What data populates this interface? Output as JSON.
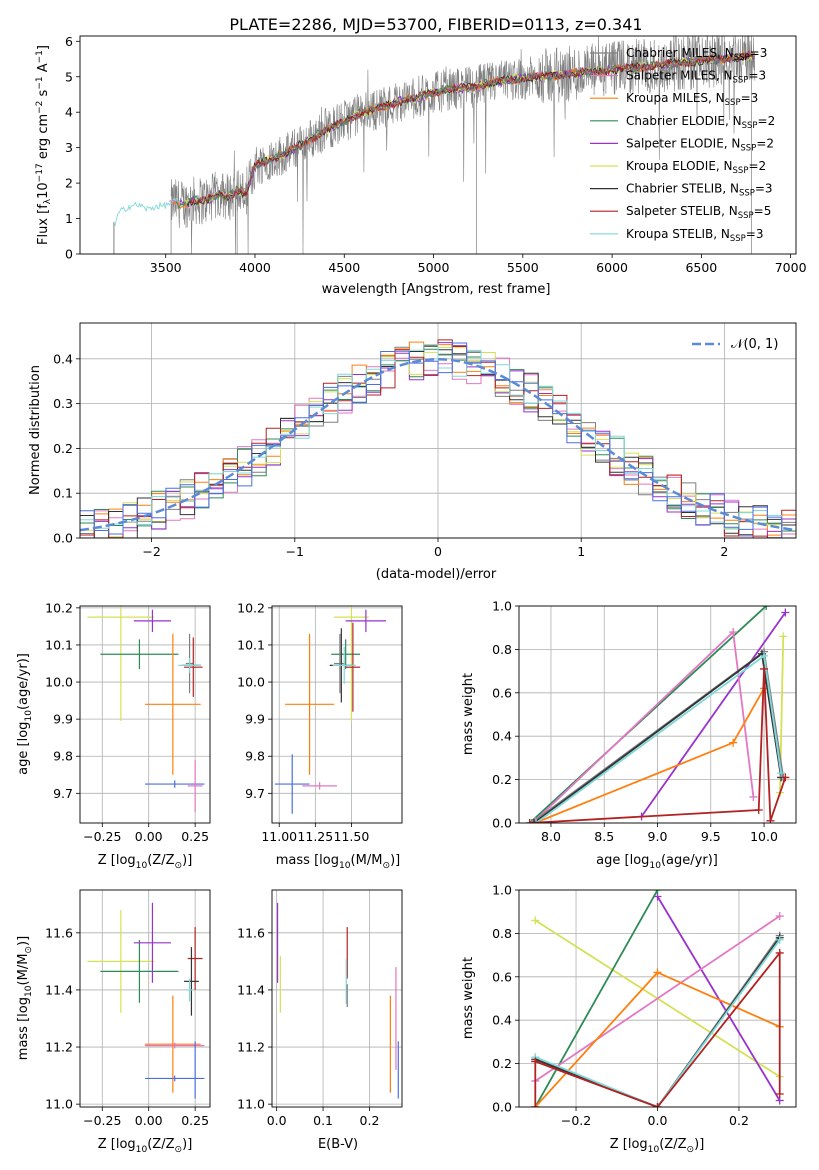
{
  "figure": {
    "title": "PLATE=2286, MJD=53700, FIBERID=0113, z=0.341"
  },
  "colors": {
    "chabrier_miles": "#7f7f7f",
    "salpeter_miles": "#e377c2",
    "kroupa_miles": "#ff7f0e",
    "chabrier_elodie": "#2e8b57",
    "salpeter_elodie": "#9932cc",
    "kroupa_elodie": "#d4e157",
    "chabrier_stelib": "#333333",
    "salpeter_stelib": "#b22222",
    "kroupa_stelib": "#7fd8d8",
    "gauss": "#5b8bd6",
    "blue_extra": "#4a6fe3"
  },
  "chart_data": [
    {
      "id": "spectrum",
      "type": "line",
      "xlabel": "wavelength [Angstrom, rest frame]",
      "ylabel_parts": [
        "Flux [f",
        "λ",
        "10",
        "−17",
        " erg cm",
        "−2",
        " s",
        "−1",
        " A",
        "−1",
        "]"
      ],
      "xlim": [
        3020,
        7030
      ],
      "ylim": [
        0,
        6.15
      ],
      "xticks": [
        3500,
        4000,
        4500,
        5000,
        5500,
        6000,
        6500,
        7000
      ],
      "yticks": [
        0,
        1,
        2,
        3,
        4,
        5,
        6
      ],
      "legend_position": "top-right",
      "legend": [
        {
          "name": "Chabrier MILES, N",
          "sub": "SSP",
          "tail": "=3",
          "color_key": "chabrier_miles"
        },
        {
          "name": "Salpeter MILES, N",
          "sub": "SSP",
          "tail": "=3",
          "color_key": "salpeter_miles"
        },
        {
          "name": "Kroupa MILES, N",
          "sub": "SSP",
          "tail": "=3",
          "color_key": "kroupa_miles"
        },
        {
          "name": "Chabrier ELODIE, N",
          "sub": "SSP",
          "tail": "=2",
          "color_key": "chabrier_elodie"
        },
        {
          "name": "Salpeter ELODIE, N",
          "sub": "SSP",
          "tail": "=2",
          "color_key": "salpeter_elodie"
        },
        {
          "name": "Kroupa ELODIE, N",
          "sub": "SSP",
          "tail": "=2",
          "color_key": "kroupa_elodie"
        },
        {
          "name": "Chabrier STELIB, N",
          "sub": "SSP",
          "tail": "=3",
          "color_key": "chabrier_stelib"
        },
        {
          "name": "Salpeter STELIB, N",
          "sub": "SSP",
          "tail": "=5",
          "color_key": "salpeter_stelib"
        },
        {
          "name": "Kroupa STELIB, N",
          "sub": "SSP",
          "tail": "=3",
          "color_key": "kroupa_stelib"
        }
      ],
      "continuum": {
        "x": [
          3210,
          3240,
          3300,
          3350,
          3400,
          3450,
          3500,
          3550,
          3600,
          3650,
          3700,
          3750,
          3800,
          3850,
          3900,
          3950,
          4000,
          4100,
          4200,
          4300,
          4400,
          4500,
          4600,
          4700,
          4800,
          4900,
          5000,
          5100,
          5200,
          5300,
          5400,
          5500,
          5600,
          5700,
          5800,
          5900,
          6000,
          6100,
          6200,
          6300,
          6400,
          6500,
          6600,
          6700,
          6800
        ],
        "y": [
          0.8,
          1.2,
          1.3,
          1.35,
          1.3,
          1.4,
          1.35,
          1.45,
          1.4,
          1.5,
          1.5,
          1.55,
          1.7,
          1.6,
          1.8,
          1.7,
          2.5,
          2.7,
          2.9,
          3.2,
          3.5,
          3.75,
          4.0,
          4.1,
          4.3,
          4.4,
          4.55,
          4.65,
          4.7,
          4.8,
          4.9,
          4.95,
          5.0,
          5.05,
          5.1,
          5.15,
          5.2,
          5.25,
          5.3,
          5.35,
          5.4,
          5.45,
          5.5,
          5.55,
          5.6
        ]
      },
      "model_range": [
        3210,
        6800
      ],
      "data_range": [
        3530,
        6800
      ]
    },
    {
      "id": "residuals",
      "type": "step",
      "xlabel": "(data-model)/error",
      "ylabel": "Normed distribution",
      "xlim": [
        -2.5,
        2.5
      ],
      "ylim": [
        0,
        0.48
      ],
      "xticks": [
        -2,
        -1,
        0,
        1,
        2
      ],
      "yticks": [
        0.0,
        0.1,
        0.2,
        0.3,
        0.4
      ],
      "yticklabels": [
        "0.0",
        "0.1",
        "0.2",
        "0.3",
        "0.4"
      ],
      "legend_position": "top-right",
      "legend_label": "𝒩(0, 1)",
      "bin_width": 0.1,
      "n_bins": 50
    },
    {
      "id": "age_vs_Z",
      "type": "errorbar",
      "xlabel_parts": [
        "Z [log",
        "10",
        "(Z/Z",
        "⊙",
        ")]"
      ],
      "ylabel_parts": [
        "age  [log",
        "10",
        "(age/yr)]"
      ],
      "xlim": [
        -0.37,
        0.33
      ],
      "ylim": [
        9.62,
        10.205
      ],
      "xticks": [
        -0.25,
        0.0,
        0.25
      ],
      "xticklabels": [
        "−0.25",
        "0.00",
        "0.25"
      ],
      "yticks": [
        9.7,
        9.8,
        9.9,
        10.0,
        10.1,
        10.2
      ],
      "yticklabels": [
        "9.7",
        "9.8",
        "9.9",
        "10.0",
        "10.1",
        "10.2"
      ],
      "points": [
        {
          "x": -0.15,
          "xerr": 0.18,
          "y": 10.175,
          "yerr": 0.28,
          "color_key": "kroupa_elodie"
        },
        {
          "x": -0.05,
          "xerr": 0.21,
          "y": 10.075,
          "yerr": 0.04,
          "color_key": "chabrier_elodie"
        },
        {
          "x": 0.02,
          "xerr": 0.1,
          "y": 10.165,
          "yerr": 0.03,
          "color_key": "salpeter_elodie"
        },
        {
          "x": 0.22,
          "xerr": 0.02,
          "y": 10.05,
          "yerr": 0.08,
          "color_key": "chabrier_miles"
        },
        {
          "x": 0.23,
          "xerr": 0.05,
          "y": 10.045,
          "yerr": 0.0,
          "color_key": "chabrier_stelib"
        },
        {
          "x": 0.24,
          "xerr": 0.05,
          "y": 10.04,
          "yerr": 0.08,
          "color_key": "salpeter_stelib"
        },
        {
          "x": 0.22,
          "xerr": 0.06,
          "y": 10.045,
          "yerr": 0.02,
          "color_key": "kroupa_stelib"
        },
        {
          "x": 0.13,
          "xerr": 0.15,
          "y": 9.94,
          "yerr": 0.19,
          "color_key": "kroupa_miles"
        },
        {
          "x": 0.14,
          "xerr": 0.16,
          "y": 9.725,
          "yerr": 0.01,
          "color_key": "blue_extra"
        },
        {
          "x": 0.25,
          "xerr": 0.04,
          "y": 9.72,
          "yerr": 0.07,
          "color_key": "salpeter_miles"
        }
      ]
    },
    {
      "id": "age_vs_mass",
      "type": "errorbar",
      "xlabel_parts": [
        "mass [log",
        "10",
        "(M/M",
        "⊙",
        ")]"
      ],
      "xlim": [
        10.95,
        11.85
      ],
      "ylim": [
        9.62,
        10.205
      ],
      "xticks": [
        11.0,
        11.25,
        11.5
      ],
      "xticklabels": [
        "11.00",
        "11.25",
        "11.50"
      ],
      "yticks": [
        9.7,
        9.8,
        9.9,
        10.0,
        10.1,
        10.2
      ],
      "yticklabels": [
        "9.7",
        "9.8",
        "9.9",
        "10.0",
        "10.1",
        "10.2"
      ],
      "points": [
        {
          "x": 11.5,
          "xerr": 0.12,
          "y": 10.175,
          "yerr": 0.28,
          "color_key": "kroupa_elodie"
        },
        {
          "x": 11.46,
          "xerr": 0.1,
          "y": 10.075,
          "yerr": 0.04,
          "color_key": "chabrier_elodie"
        },
        {
          "x": 11.6,
          "xerr": 0.14,
          "y": 10.165,
          "yerr": 0.03,
          "color_key": "salpeter_elodie"
        },
        {
          "x": 11.42,
          "xerr": 0.04,
          "y": 10.05,
          "yerr": 0.08,
          "color_key": "chabrier_miles"
        },
        {
          "x": 11.43,
          "xerr": 0.08,
          "y": 10.045,
          "yerr": 0.1,
          "color_key": "chabrier_stelib"
        },
        {
          "x": 11.51,
          "xerr": 0.05,
          "y": 10.04,
          "yerr": 0.12,
          "color_key": "salpeter_stelib"
        },
        {
          "x": 11.45,
          "xerr": 0.08,
          "y": 10.045,
          "yerr": 0.05,
          "color_key": "kroupa_stelib"
        },
        {
          "x": 11.21,
          "xerr": 0.17,
          "y": 9.94,
          "yerr": 0.19,
          "color_key": "kroupa_miles"
        },
        {
          "x": 11.09,
          "xerr": 0.12,
          "y": 9.725,
          "yerr": 0.08,
          "color_key": "blue_extra"
        },
        {
          "x": 11.28,
          "xerr": 0.12,
          "y": 9.72,
          "yerr": 0.01,
          "color_key": "salpeter_miles"
        }
      ]
    },
    {
      "id": "weight_vs_age",
      "type": "line",
      "xlabel_parts": [
        "age  [log",
        "10",
        "(age/yr)]"
      ],
      "ylabel": "mass weight",
      "xlim": [
        7.7,
        10.3
      ],
      "ylim": [
        0,
        1.0
      ],
      "xticks": [
        8.0,
        8.5,
        9.0,
        9.5,
        10.0
      ],
      "xticklabels": [
        "8.0",
        "8.5",
        "9.0",
        "9.5",
        "10.0"
      ],
      "yticks": [
        0.0,
        0.2,
        0.4,
        0.6,
        0.8,
        1.0
      ],
      "yticklabels": [
        "0.0",
        "0.2",
        "0.4",
        "0.6",
        "0.8",
        "1.0"
      ],
      "series": [
        {
          "color_key": "kroupa_elodie",
          "x": [
            10.15,
            10.18
          ],
          "y": [
            0.14,
            0.86
          ]
        },
        {
          "color_key": "salpeter_elodie",
          "x": [
            8.85,
            10.2
          ],
          "y": [
            0.03,
            0.97
          ]
        },
        {
          "color_key": "chabrier_elodie",
          "x": [
            7.8,
            10.02
          ],
          "y": [
            0.0,
            1.0
          ]
        },
        {
          "color_key": "salpeter_miles",
          "x": [
            7.85,
            9.71,
            9.9
          ],
          "y": [
            0.01,
            0.88,
            0.12
          ]
        },
        {
          "color_key": "kroupa_miles",
          "x": [
            7.85,
            9.71,
            10.0
          ],
          "y": [
            0.0,
            0.37,
            0.62
          ]
        },
        {
          "color_key": "chabrier_miles",
          "x": [
            7.82,
            10.0,
            10.18
          ],
          "y": [
            0.0,
            0.79,
            0.21
          ]
        },
        {
          "color_key": "chabrier_stelib",
          "x": [
            7.84,
            9.98,
            10.16
          ],
          "y": [
            0.0,
            0.78,
            0.21
          ]
        },
        {
          "color_key": "kroupa_stelib",
          "x": [
            7.86,
            10.0,
            10.16
          ],
          "y": [
            0.0,
            0.77,
            0.23
          ]
        },
        {
          "color_key": "salpeter_stelib",
          "x": [
            7.8,
            9.95,
            10.0,
            10.06,
            10.2
          ],
          "y": [
            0.0,
            0.06,
            0.71,
            0.01,
            0.21
          ]
        }
      ]
    },
    {
      "id": "mass_vs_Z",
      "type": "errorbar",
      "xlabel_parts": [
        "Z [log",
        "10",
        "(Z/Z",
        "⊙",
        ")]"
      ],
      "ylabel_parts": [
        "mass [log",
        "10",
        "(M/M",
        "⊙",
        ")]"
      ],
      "xlim": [
        -0.37,
        0.33
      ],
      "ylim": [
        10.99,
        11.75
      ],
      "xticks": [
        -0.25,
        0.0,
        0.25
      ],
      "xticklabels": [
        "−0.25",
        "0.00",
        "0.25"
      ],
      "yticks": [
        11.0,
        11.2,
        11.4,
        11.6
      ],
      "yticklabels": [
        "11.0",
        "11.2",
        "11.4",
        "11.6"
      ],
      "points": [
        {
          "x": -0.15,
          "xerr": 0.18,
          "y": 11.5,
          "yerr": 0.18,
          "color_key": "kroupa_elodie"
        },
        {
          "x": -0.05,
          "xerr": 0.21,
          "y": 11.465,
          "yerr": 0.11,
          "color_key": "chabrier_elodie"
        },
        {
          "x": 0.02,
          "xerr": 0.1,
          "y": 11.565,
          "yerr": 0.14,
          "color_key": "salpeter_elodie"
        },
        {
          "x": 0.25,
          "xerr": 0.04,
          "y": 11.51,
          "yerr": 0.11,
          "color_key": "salpeter_stelib"
        },
        {
          "x": 0.23,
          "xerr": 0.04,
          "y": 11.43,
          "yerr": 0.12,
          "color_key": "chabrier_stelib"
        },
        {
          "x": 0.22,
          "xerr": 0.02,
          "y": 11.4,
          "yerr": 0.04,
          "color_key": "kroupa_stelib"
        },
        {
          "x": 0.13,
          "xerr": 0.15,
          "y": 11.21,
          "yerr": 0.17,
          "color_key": "kroupa_miles"
        },
        {
          "x": 0.14,
          "xerr": 0.16,
          "y": 11.205,
          "yerr": 0.01,
          "color_key": "salpeter_miles"
        },
        {
          "x": 0.14,
          "xerr": 0.16,
          "y": 11.09,
          "yerr": 0.01,
          "color_key": "blue_extra"
        },
        {
          "x": 0.25,
          "xerr": 0.0,
          "y": 11.12,
          "yerr": 0.1,
          "color_key": "blue_extra"
        }
      ]
    },
    {
      "id": "mass_vs_ebv",
      "type": "errorbar",
      "xlabel": "E(B-V)",
      "xlim": [
        -0.01,
        0.27
      ],
      "ylim": [
        10.99,
        11.75
      ],
      "xticks": [
        0.0,
        0.1,
        0.2
      ],
      "xticklabels": [
        "0.0",
        "0.1",
        "0.2"
      ],
      "yticks": [
        11.0,
        11.2,
        11.4,
        11.6
      ],
      "yticklabels": [
        "11.0",
        "11.2",
        "11.4",
        "11.6"
      ],
      "points": [
        {
          "x": 0.002,
          "xerr": 0.0,
          "y": 11.565,
          "yerr": 0.14,
          "color_key": "salpeter_elodie"
        },
        {
          "x": 0.008,
          "xerr": 0.0,
          "y": 11.42,
          "yerr": 0.1,
          "color_key": "kroupa_elodie"
        },
        {
          "x": 0.152,
          "xerr": 0.0,
          "y": 11.53,
          "yerr": 0.09,
          "color_key": "salpeter_stelib"
        },
        {
          "x": 0.15,
          "xerr": 0.0,
          "y": 11.43,
          "yerr": 0.08,
          "color_key": "kroupa_stelib"
        },
        {
          "x": 0.152,
          "xerr": 0.0,
          "y": 11.38,
          "yerr": 0.04,
          "color_key": "chabrier_miles"
        },
        {
          "x": 0.245,
          "xerr": 0.0,
          "y": 11.21,
          "yerr": 0.17,
          "color_key": "kroupa_miles"
        },
        {
          "x": 0.257,
          "xerr": 0.0,
          "y": 11.3,
          "yerr": 0.18,
          "color_key": "salpeter_miles"
        },
        {
          "x": 0.262,
          "xerr": 0.0,
          "y": 11.12,
          "yerr": 0.1,
          "color_key": "blue_extra"
        }
      ]
    },
    {
      "id": "weight_vs_Z",
      "type": "line",
      "xlabel_parts": [
        "Z [log",
        "10",
        "(Z/Z",
        "⊙",
        ")]"
      ],
      "ylabel": "mass weight",
      "xlim": [
        -0.34,
        0.34
      ],
      "ylim": [
        0,
        1.0
      ],
      "xticks": [
        -0.2,
        0.0,
        0.2
      ],
      "xticklabels": [
        "−0.2",
        "0.0",
        "0.2"
      ],
      "yticks": [
        0.0,
        0.2,
        0.4,
        0.6,
        0.8,
        1.0
      ],
      "yticklabels": [
        "0.0",
        "0.2",
        "0.4",
        "0.6",
        "0.8",
        "1.0"
      ],
      "series": [
        {
          "color_key": "kroupa_elodie",
          "x": [
            -0.3,
            0.3
          ],
          "y": [
            0.86,
            0.14
          ]
        },
        {
          "color_key": "salpeter_elodie",
          "x": [
            0.0,
            0.3
          ],
          "y": [
            0.97,
            0.03
          ]
        },
        {
          "color_key": "chabrier_elodie",
          "x": [
            -0.3,
            0.0
          ],
          "y": [
            0.0,
            1.0
          ]
        },
        {
          "color_key": "salpeter_miles",
          "x": [
            -0.3,
            0.3
          ],
          "y": [
            0.12,
            0.88
          ]
        },
        {
          "color_key": "kroupa_miles",
          "x": [
            -0.3,
            0.0,
            0.3
          ],
          "y": [
            0.0,
            0.62,
            0.37
          ]
        },
        {
          "color_key": "chabrier_miles",
          "x": [
            -0.3,
            0.0,
            0.3
          ],
          "y": [
            0.21,
            0.0,
            0.79
          ]
        },
        {
          "color_key": "chabrier_stelib",
          "x": [
            -0.3,
            0.0,
            0.3
          ],
          "y": [
            0.22,
            0.0,
            0.78
          ]
        },
        {
          "color_key": "kroupa_stelib",
          "x": [
            -0.3,
            0.0,
            0.3
          ],
          "y": [
            0.23,
            0.0,
            0.77
          ]
        },
        {
          "color_key": "salpeter_stelib",
          "x": [
            -0.3,
            -0.3,
            0.0,
            0.3,
            0.3
          ],
          "y": [
            0.0,
            0.21,
            0.0,
            0.71,
            0.06
          ]
        }
      ]
    }
  ]
}
